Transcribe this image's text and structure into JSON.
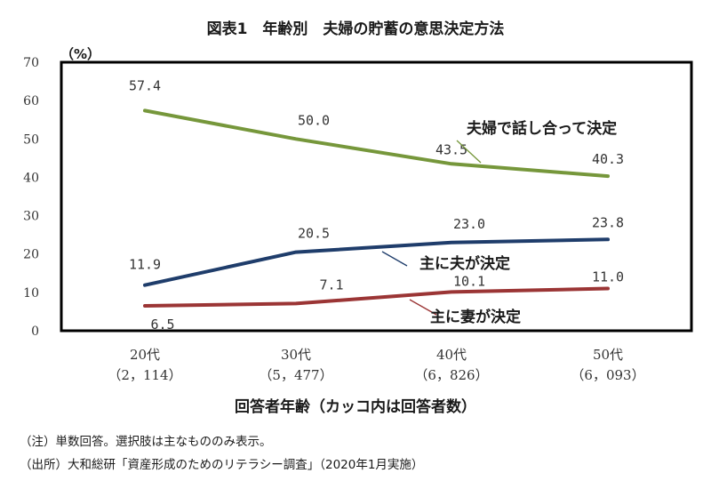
{
  "chart_data": {
    "type": "line",
    "title": "図表1　年齢別　夫婦の貯蓄の意思決定方法",
    "y_unit": "（%）",
    "ylim": [
      0,
      70
    ],
    "yticks": [
      0,
      10,
      20,
      30,
      40,
      50,
      60,
      70
    ],
    "categories": [
      "20代",
      "30代",
      "40代",
      "50代"
    ],
    "category_counts": [
      "（2，114）",
      "（5，477）",
      "（6，826）",
      "（6，093）"
    ],
    "xlabel": "回答者年齢（カッコ内は回答者数）",
    "grid": false,
    "series": [
      {
        "name": "夫婦で話し合って決定",
        "color": "#76973b",
        "values": [
          57.4,
          50.0,
          43.5,
          40.3
        ],
        "labels": [
          "57.4",
          "50.0",
          "43.5",
          "40.3"
        ]
      },
      {
        "name": "主に夫が決定",
        "color": "#1f3d6b",
        "values": [
          11.9,
          20.5,
          23.0,
          23.8
        ],
        "labels": [
          "11.9",
          "20.5",
          "23.0",
          "23.8"
        ]
      },
      {
        "name": "主に妻が決定",
        "color": "#9b3535",
        "values": [
          6.5,
          7.1,
          10.1,
          11.0
        ],
        "labels": [
          "6.5",
          "7.1",
          "10.1",
          "11.0"
        ]
      }
    ]
  },
  "notes": [
    "（注）単数回答。選択肢は主なもののみ表示。",
    "（出所）大和総研「資産形成のためのリテラシー調査」（2020年1月実施）"
  ]
}
